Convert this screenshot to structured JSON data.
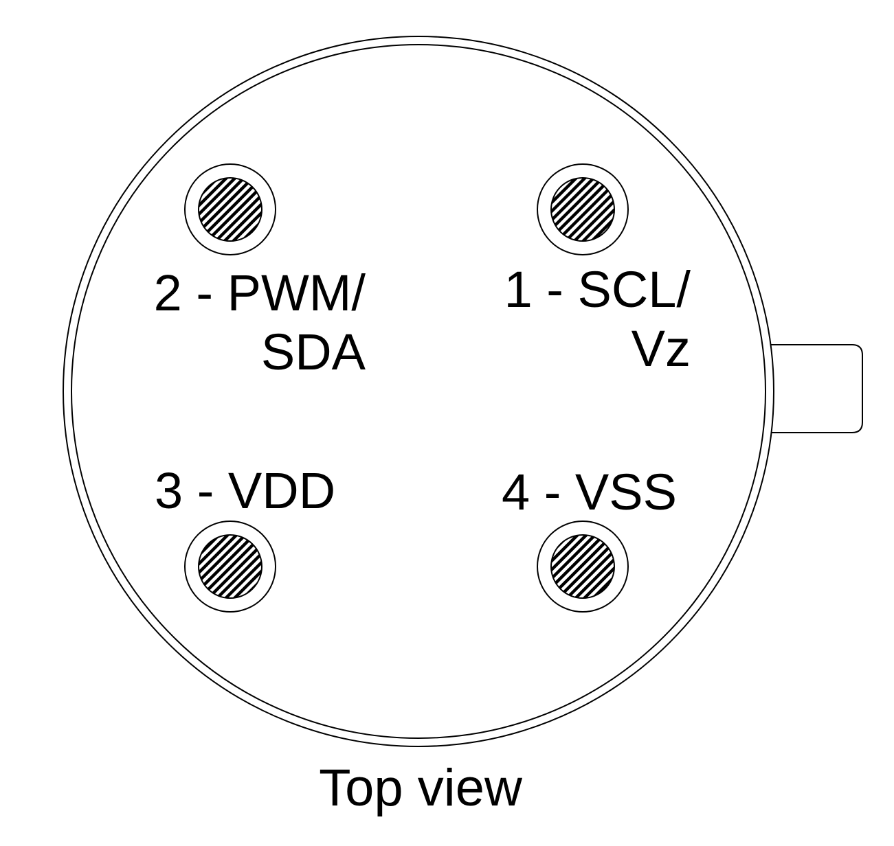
{
  "diagram": {
    "caption": "Top view",
    "stroke_color": "#000000",
    "background_color": "#ffffff",
    "pin_fill": "hatched",
    "pins": [
      {
        "number": "1",
        "line1": "1 - SCL/",
        "line2": "Vz"
      },
      {
        "number": "2",
        "line1": "2 - PWM/",
        "line2": "SDA"
      },
      {
        "number": "3",
        "line1": "3 - VDD"
      },
      {
        "number": "4",
        "line1": "4 - VSS"
      }
    ]
  }
}
